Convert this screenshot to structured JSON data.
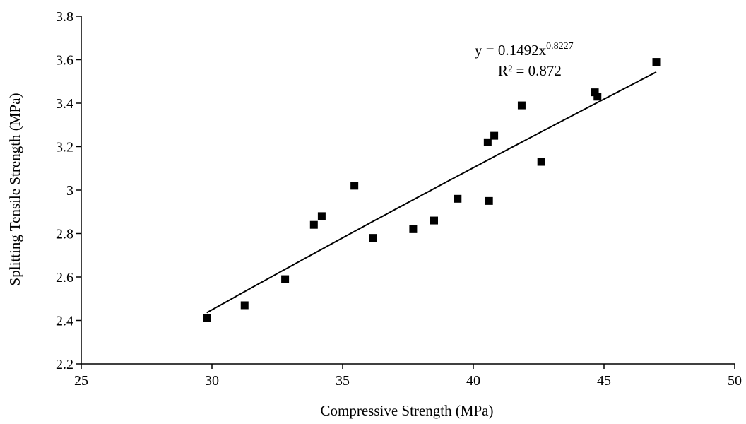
{
  "chart_data": {
    "type": "scatter",
    "title": "",
    "xlabel": "Compressive Strength (MPa)",
    "ylabel": "Splitting Tensile Strength (MPa)",
    "xlim": [
      25,
      50
    ],
    "ylim": [
      2.2,
      3.8
    ],
    "xticks": [
      "25",
      "30",
      "35",
      "40",
      "45",
      "50"
    ],
    "yticks": [
      "2.2",
      "2.4",
      "2.6",
      "2.8",
      "3",
      "3.2",
      "3.4",
      "3.6",
      "3.8"
    ],
    "grid": false,
    "legend": "none",
    "marker": "square",
    "marker_color": "#000000",
    "series": [
      {
        "points": [
          [
            29.8,
            2.41
          ],
          [
            31.25,
            2.47
          ],
          [
            32.8,
            2.59
          ],
          [
            33.9,
            2.84
          ],
          [
            34.2,
            2.88
          ],
          [
            35.45,
            3.02
          ],
          [
            36.15,
            2.78
          ],
          [
            37.7,
            2.82
          ],
          [
            38.5,
            2.86
          ],
          [
            39.4,
            2.96
          ],
          [
            40.55,
            3.22
          ],
          [
            40.6,
            2.95
          ],
          [
            40.8,
            3.25
          ],
          [
            41.85,
            3.39
          ],
          [
            42.6,
            3.13
          ],
          [
            44.65,
            3.45
          ],
          [
            44.75,
            3.43
          ],
          [
            47.0,
            3.59
          ]
        ]
      }
    ],
    "trendline": {
      "type": "power",
      "coefficient": 0.1492,
      "exponent": 0.8227,
      "x_range": [
        29.8,
        47.0
      ],
      "color": "#000000"
    },
    "annotations": {
      "equation_prefix": "y = 0.1492x",
      "equation_exponent": "0.8227",
      "r_squared": "R² = 0.872"
    }
  }
}
